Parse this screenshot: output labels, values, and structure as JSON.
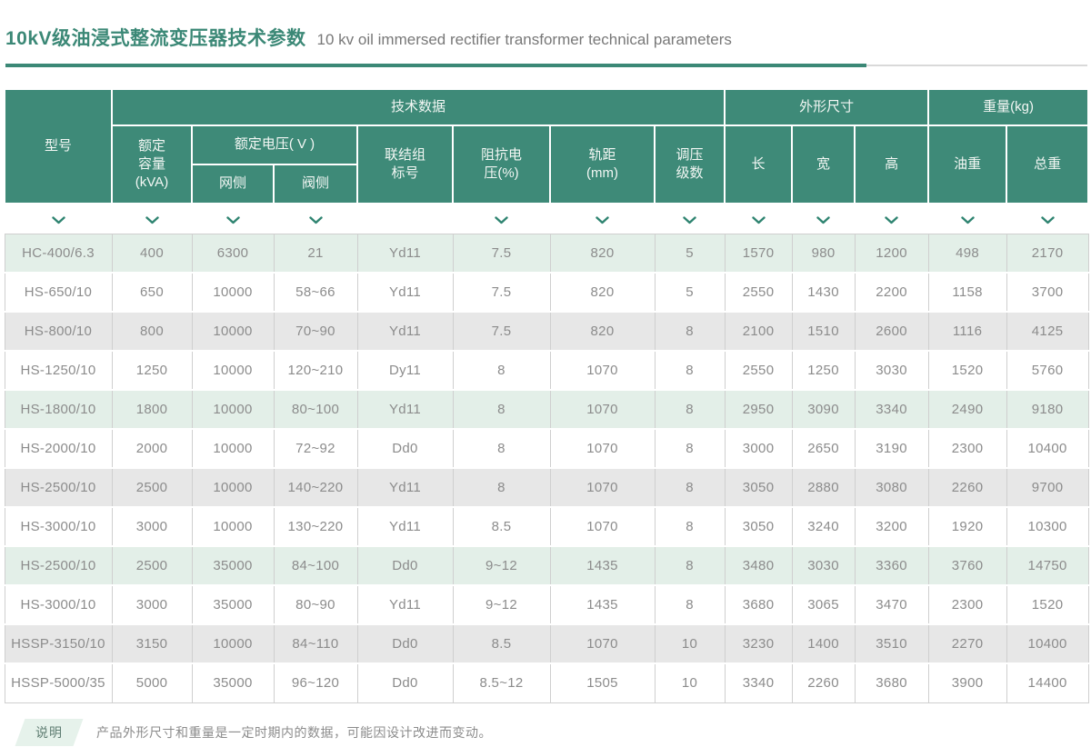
{
  "page": {
    "title_zh": "10kV级油浸式整流变压器技术参数",
    "title_en": "10 kv oil immersed rectifier transformer technical parameters"
  },
  "colors": {
    "header_teal": "#3E8A78",
    "title_teal": "#3B8876",
    "row_green": "#E3EFE8",
    "row_gray": "#E7E7E7",
    "chevron": "#2F8471",
    "cell_border": "#CFCFCF",
    "badge_bg": "#E6F2EB"
  },
  "table": {
    "groups": {
      "model": "型号",
      "tech": "技术数据",
      "dimensions": "外形尺寸",
      "weight": "重量(kg)"
    },
    "subheaders": {
      "rated_capacity": "额定\n容量\n(kVA)",
      "rated_voltage": "额定电压( V )",
      "grid_side": "网侧",
      "valve_side": "阀侧",
      "vector_group": "联结组\n标号",
      "impedance": "阻抗电\n压(%)",
      "gauge": "轨距\n(mm)",
      "tap_steps": "调压\n级数",
      "length": "长",
      "width": "宽",
      "height": "高",
      "oil_weight": "油重",
      "total_weight": "总重"
    },
    "chevron_columns": [
      true,
      true,
      true,
      true,
      false,
      true,
      true,
      true,
      true,
      true,
      true,
      true,
      true
    ],
    "row_tints": [
      "green",
      "white",
      "gray",
      "white",
      "green",
      "white",
      "gray",
      "white",
      "green",
      "white",
      "gray",
      "white"
    ],
    "rows": [
      [
        "HC-400/6.3",
        "400",
        "6300",
        "21",
        "Yd11",
        "7.5",
        "820",
        "5",
        "1570",
        "980",
        "1200",
        "498",
        "2170"
      ],
      [
        "HS-650/10",
        "650",
        "10000",
        "58~66",
        "Yd11",
        "7.5",
        "820",
        "5",
        "2550",
        "1430",
        "2200",
        "1158",
        "3700"
      ],
      [
        "HS-800/10",
        "800",
        "10000",
        "70~90",
        "Yd11",
        "7.5",
        "820",
        "8",
        "2100",
        "1510",
        "2600",
        "1116",
        "4125"
      ],
      [
        "HS-1250/10",
        "1250",
        "10000",
        "120~210",
        "Dy11",
        "8",
        "1070",
        "8",
        "2550",
        "1250",
        "3030",
        "1520",
        "5760"
      ],
      [
        "HS-1800/10",
        "1800",
        "10000",
        "80~100",
        "Yd11",
        "8",
        "1070",
        "8",
        "2950",
        "3090",
        "3340",
        "2490",
        "9180"
      ],
      [
        "HS-2000/10",
        "2000",
        "10000",
        "72~92",
        "Dd0",
        "8",
        "1070",
        "8",
        "3000",
        "2650",
        "3190",
        "2300",
        "10400"
      ],
      [
        "HS-2500/10",
        "2500",
        "10000",
        "140~220",
        "Yd11",
        "8",
        "1070",
        "8",
        "3050",
        "2880",
        "3080",
        "2260",
        "9700"
      ],
      [
        "HS-3000/10",
        "3000",
        "10000",
        "130~220",
        "Yd11",
        "8.5",
        "1070",
        "8",
        "3050",
        "3240",
        "3200",
        "1920",
        "10300"
      ],
      [
        "HS-2500/10",
        "2500",
        "35000",
        "84~100",
        "Dd0",
        "9~12",
        "1435",
        "8",
        "3480",
        "3030",
        "3360",
        "3760",
        "14750"
      ],
      [
        "HS-3000/10",
        "3000",
        "35000",
        "80~90",
        "Yd11",
        "9~12",
        "1435",
        "8",
        "3680",
        "3065",
        "3470",
        "2300",
        "1520"
      ],
      [
        "HSSP-3150/10",
        "3150",
        "10000",
        "84~110",
        "Dd0",
        "8.5",
        "1070",
        "10",
        "3230",
        "1400",
        "3510",
        "2270",
        "10400"
      ],
      [
        "HSSP-5000/35",
        "5000",
        "35000",
        "96~120",
        "Dd0",
        "8.5~12",
        "1505",
        "10",
        "3340",
        "2260",
        "3680",
        "3900",
        "14400"
      ]
    ]
  },
  "note": {
    "badge": "说明",
    "text": "产品外形尺寸和重量是一定时期内的数据，可能因设计改进而变动。"
  }
}
